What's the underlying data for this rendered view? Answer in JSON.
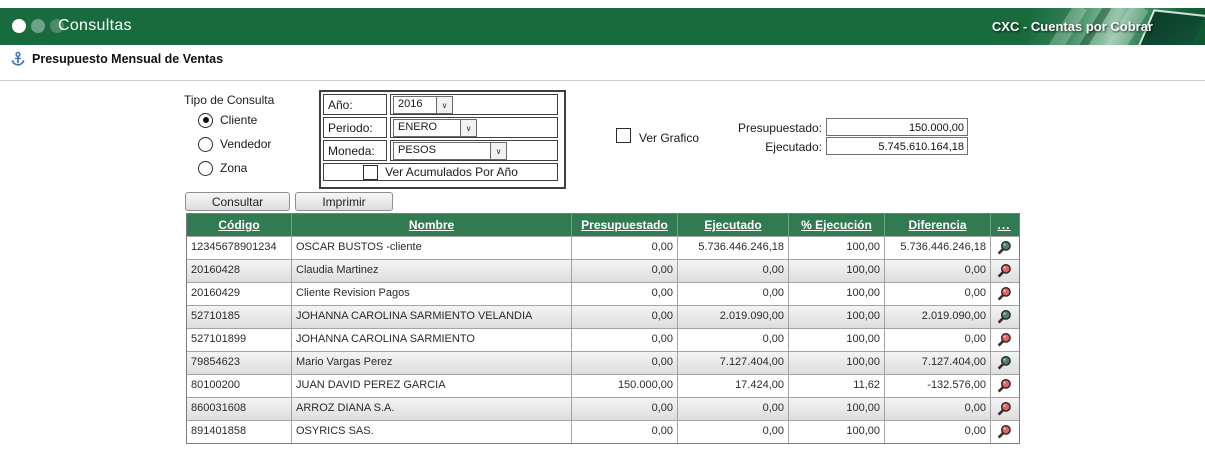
{
  "colors": {
    "bar_green": "#186b3c",
    "table_header_green": "#327b52",
    "lens_green": "#4a8468",
    "lens_red": "#e2635f",
    "accent_blue": "#3f6fb4"
  },
  "header": {
    "title": "Consultas",
    "app_title": "CXC - Cuentas por Cobrar"
  },
  "breadcrumb": {
    "title": "Presupuesto Mensual de Ventas"
  },
  "form": {
    "tipo_label": "Tipo de Consulta",
    "radios": [
      {
        "label": "Cliente",
        "checked": true
      },
      {
        "label": "Vendedor",
        "checked": false
      },
      {
        "label": "Zona",
        "checked": false
      }
    ],
    "fields": [
      {
        "label": "Año:",
        "value": "2016"
      },
      {
        "label": "Periodo:",
        "value": "ENERO"
      },
      {
        "label": "Moneda:",
        "value": "PESOS"
      }
    ],
    "acumulados_label": "Ver Acumulados Por Año",
    "acumulados_checked": false,
    "ver_grafico_label": "Ver Grafico",
    "ver_grafico_checked": false,
    "buttons": {
      "consultar": "Consultar",
      "imprimir": "Imprimir"
    },
    "totals": [
      {
        "label": "Presupuestado:",
        "value": "150.000,00"
      },
      {
        "label": "Ejecutado:",
        "value": "5.745.610.164,18"
      }
    ]
  },
  "table": {
    "columns": [
      "Código",
      "Nombre",
      "Presupuestado",
      "Ejecutado",
      "% Ejecución",
      "Diferencia",
      "..."
    ],
    "rows": [
      {
        "codigo": "12345678901234",
        "nombre": "OSCAR BUSTOS -cliente",
        "presupuestado": "0,00",
        "ejecutado": "5.736.446.246,18",
        "pct": "100,00",
        "diferencia": "5.736.446.246,18",
        "lens": "green"
      },
      {
        "codigo": "20160428",
        "nombre": "Claudia Martinez",
        "presupuestado": "0,00",
        "ejecutado": "0,00",
        "pct": "100,00",
        "diferencia": "0,00",
        "lens": "red"
      },
      {
        "codigo": "20160429",
        "nombre": "Cliente Revision Pagos",
        "presupuestado": "0,00",
        "ejecutado": "0,00",
        "pct": "100,00",
        "diferencia": "0,00",
        "lens": "red"
      },
      {
        "codigo": "52710185",
        "nombre": "JOHANNA CAROLINA SARMIENTO VELANDIA",
        "presupuestado": "0,00",
        "ejecutado": "2.019.090,00",
        "pct": "100,00",
        "diferencia": "2.019.090,00",
        "lens": "green"
      },
      {
        "codigo": "527101899",
        "nombre": "JOHANNA CAROLINA SARMIENTO",
        "presupuestado": "0,00",
        "ejecutado": "0,00",
        "pct": "100,00",
        "diferencia": "0,00",
        "lens": "red"
      },
      {
        "codigo": "79854623",
        "nombre": "Mario Vargas Perez",
        "presupuestado": "0,00",
        "ejecutado": "7.127.404,00",
        "pct": "100,00",
        "diferencia": "7.127.404,00",
        "lens": "green"
      },
      {
        "codigo": "80100200",
        "nombre": "JUAN DAVID PEREZ GARCIA",
        "presupuestado": "150.000,00",
        "ejecutado": "17.424,00",
        "pct": "11,62",
        "diferencia": "-132.576,00",
        "lens": "red"
      },
      {
        "codigo": "860031608",
        "nombre": "ARROZ DIANA S.A.",
        "presupuestado": "0,00",
        "ejecutado": "0,00",
        "pct": "100,00",
        "diferencia": "0,00",
        "lens": "red"
      },
      {
        "codigo": "891401858",
        "nombre": "OSYRICS SAS.",
        "presupuestado": "0,00",
        "ejecutado": "0,00",
        "pct": "100,00",
        "diferencia": "0,00",
        "lens": "red"
      }
    ]
  }
}
